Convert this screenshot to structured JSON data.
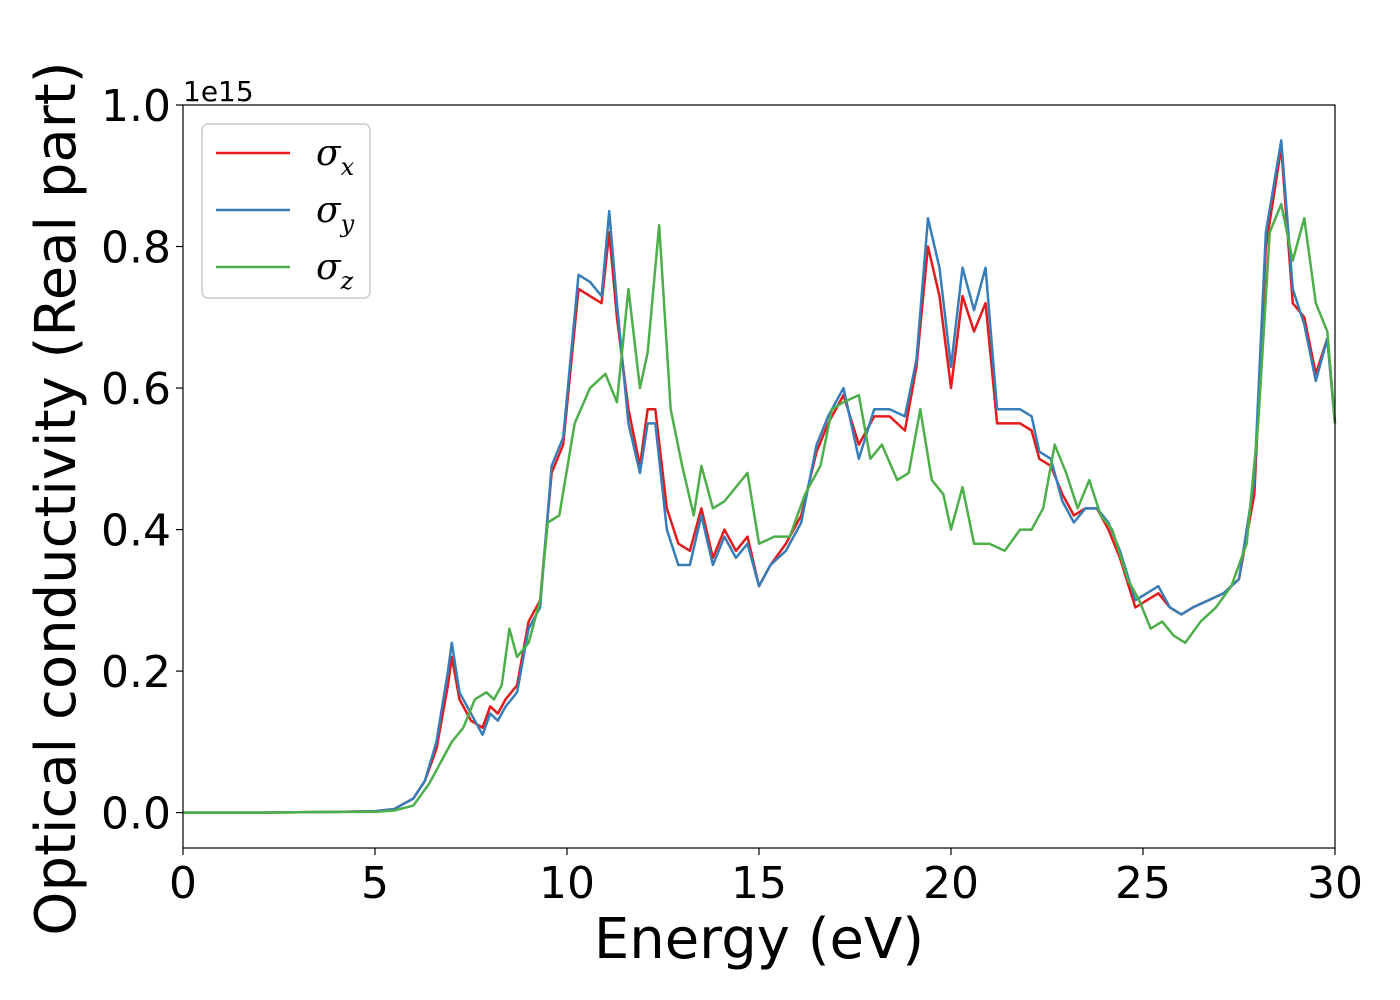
{
  "chart_data": {
    "type": "line",
    "title": "",
    "xlabel": "Energy (eV)",
    "ylabel": "Optical conductivity (Real part)",
    "y_offset_text": "1e15",
    "xlim": [
      0,
      30
    ],
    "ylim": [
      -0.05,
      1.0
    ],
    "xticks": [
      0,
      5,
      10,
      15,
      20,
      25,
      30
    ],
    "xtick_labels": [
      "0",
      "5",
      "10",
      "15",
      "20",
      "25",
      "30"
    ],
    "yticks": [
      0.0,
      0.2,
      0.4,
      0.6,
      0.8,
      1.0
    ],
    "ytick_labels": [
      "0.0",
      "0.2",
      "0.4",
      "0.6",
      "0.8",
      "1.0"
    ],
    "grid": false,
    "legend_position": "top-left",
    "colors": {
      "sigma_x": "#e41a1c",
      "sigma_y": "#377eb8",
      "sigma_z": "#4daf4a",
      "axes": "#000000",
      "legend_border": "#cccccc"
    },
    "series": [
      {
        "name": "σx",
        "symbol": "σ",
        "subscript": "x",
        "color": "#e41a1c",
        "x": [
          0,
          2,
          4,
          5,
          5.5,
          6,
          6.3,
          6.6,
          6.9,
          7.0,
          7.2,
          7.5,
          7.8,
          8.0,
          8.2,
          8.4,
          8.7,
          9.0,
          9.3,
          9.6,
          9.9,
          10.3,
          10.6,
          10.9,
          11.1,
          11.3,
          11.6,
          11.9,
          12.1,
          12.3,
          12.6,
          12.9,
          13.2,
          13.5,
          13.8,
          14.1,
          14.4,
          14.7,
          15.0,
          15.3,
          15.7,
          16.1,
          16.5,
          16.8,
          17.2,
          17.6,
          18.0,
          18.4,
          18.8,
          19.1,
          19.4,
          19.7,
          20.0,
          20.3,
          20.6,
          20.9,
          21.2,
          21.5,
          21.8,
          22.1,
          22.3,
          22.6,
          22.9,
          23.2,
          23.5,
          23.8,
          24.1,
          24.4,
          24.8,
          25.1,
          25.4,
          25.7,
          26.0,
          26.3,
          26.7,
          27.1,
          27.5,
          27.9,
          28.2,
          28.6,
          28.9,
          29.2,
          29.5,
          29.8,
          30.0
        ],
        "values": [
          0,
          0,
          0.001,
          0.002,
          0.005,
          0.02,
          0.045,
          0.09,
          0.18,
          0.22,
          0.16,
          0.13,
          0.12,
          0.15,
          0.14,
          0.16,
          0.18,
          0.27,
          0.3,
          0.48,
          0.52,
          0.74,
          0.73,
          0.72,
          0.82,
          0.7,
          0.57,
          0.49,
          0.57,
          0.57,
          0.43,
          0.38,
          0.37,
          0.43,
          0.36,
          0.4,
          0.37,
          0.39,
          0.32,
          0.35,
          0.38,
          0.42,
          0.51,
          0.55,
          0.59,
          0.52,
          0.56,
          0.56,
          0.54,
          0.63,
          0.8,
          0.73,
          0.6,
          0.73,
          0.68,
          0.72,
          0.55,
          0.55,
          0.55,
          0.54,
          0.5,
          0.49,
          0.45,
          0.42,
          0.43,
          0.43,
          0.4,
          0.36,
          0.29,
          0.3,
          0.31,
          0.29,
          0.28,
          0.29,
          0.3,
          0.31,
          0.33,
          0.45,
          0.8,
          0.94,
          0.72,
          0.7,
          0.62,
          0.67,
          0.55
        ]
      },
      {
        "name": "σy",
        "symbol": "σ",
        "subscript": "y",
        "color": "#377eb8",
        "x": [
          0,
          2,
          4,
          5,
          5.5,
          6,
          6.3,
          6.6,
          6.9,
          7.0,
          7.2,
          7.5,
          7.8,
          8.0,
          8.2,
          8.4,
          8.7,
          9.0,
          9.3,
          9.6,
          9.9,
          10.3,
          10.6,
          10.9,
          11.1,
          11.3,
          11.6,
          11.9,
          12.1,
          12.3,
          12.6,
          12.9,
          13.2,
          13.5,
          13.8,
          14.1,
          14.4,
          14.7,
          15.0,
          15.3,
          15.7,
          16.1,
          16.5,
          16.8,
          17.2,
          17.6,
          18.0,
          18.4,
          18.8,
          19.1,
          19.4,
          19.7,
          20.0,
          20.3,
          20.6,
          20.9,
          21.2,
          21.5,
          21.8,
          22.1,
          22.3,
          22.6,
          22.9,
          23.2,
          23.5,
          23.8,
          24.1,
          24.4,
          24.8,
          25.1,
          25.4,
          25.7,
          26.0,
          26.3,
          26.7,
          27.1,
          27.5,
          27.9,
          28.2,
          28.6,
          28.9,
          29.2,
          29.5,
          29.8,
          30.0
        ],
        "values": [
          0,
          0,
          0.001,
          0.002,
          0.005,
          0.02,
          0.045,
          0.1,
          0.2,
          0.24,
          0.17,
          0.14,
          0.11,
          0.14,
          0.13,
          0.15,
          0.17,
          0.26,
          0.29,
          0.49,
          0.53,
          0.76,
          0.75,
          0.73,
          0.85,
          0.72,
          0.55,
          0.48,
          0.55,
          0.55,
          0.4,
          0.35,
          0.35,
          0.42,
          0.35,
          0.39,
          0.36,
          0.38,
          0.32,
          0.35,
          0.37,
          0.41,
          0.52,
          0.56,
          0.6,
          0.5,
          0.57,
          0.57,
          0.56,
          0.64,
          0.84,
          0.77,
          0.63,
          0.77,
          0.71,
          0.77,
          0.57,
          0.57,
          0.57,
          0.56,
          0.51,
          0.5,
          0.44,
          0.41,
          0.43,
          0.43,
          0.41,
          0.37,
          0.3,
          0.31,
          0.32,
          0.29,
          0.28,
          0.29,
          0.3,
          0.31,
          0.33,
          0.47,
          0.82,
          0.95,
          0.74,
          0.69,
          0.61,
          0.67,
          0.55
        ]
      },
      {
        "name": "σz",
        "symbol": "σ",
        "subscript": "z",
        "color": "#4daf4a",
        "x": [
          0,
          2,
          4,
          5,
          5.5,
          6,
          6.4,
          6.8,
          7.0,
          7.3,
          7.6,
          7.9,
          8.1,
          8.3,
          8.5,
          8.7,
          9.0,
          9.3,
          9.5,
          9.8,
          10.2,
          10.6,
          11.0,
          11.3,
          11.6,
          11.9,
          12.1,
          12.4,
          12.7,
          13.0,
          13.3,
          13.5,
          13.8,
          14.1,
          14.4,
          14.7,
          15.0,
          15.4,
          15.8,
          16.2,
          16.6,
          16.9,
          17.2,
          17.6,
          17.9,
          18.2,
          18.6,
          18.9,
          19.2,
          19.5,
          19.8,
          20.0,
          20.3,
          20.6,
          21.0,
          21.4,
          21.8,
          22.1,
          22.4,
          22.7,
          23.0,
          23.3,
          23.6,
          23.9,
          24.2,
          24.6,
          24.9,
          25.2,
          25.5,
          25.8,
          26.1,
          26.5,
          26.9,
          27.3,
          27.7,
          28.0,
          28.3,
          28.6,
          28.9,
          29.2,
          29.5,
          29.8,
          30.0
        ],
        "values": [
          0,
          0,
          0.001,
          0.001,
          0.003,
          0.01,
          0.04,
          0.08,
          0.1,
          0.12,
          0.16,
          0.17,
          0.16,
          0.18,
          0.26,
          0.22,
          0.24,
          0.3,
          0.41,
          0.42,
          0.55,
          0.6,
          0.62,
          0.58,
          0.74,
          0.6,
          0.65,
          0.83,
          0.57,
          0.49,
          0.42,
          0.49,
          0.43,
          0.44,
          0.46,
          0.48,
          0.38,
          0.39,
          0.39,
          0.45,
          0.49,
          0.57,
          0.58,
          0.59,
          0.5,
          0.52,
          0.47,
          0.48,
          0.57,
          0.47,
          0.45,
          0.4,
          0.46,
          0.38,
          0.38,
          0.37,
          0.4,
          0.4,
          0.43,
          0.52,
          0.48,
          0.43,
          0.47,
          0.42,
          0.4,
          0.33,
          0.3,
          0.26,
          0.27,
          0.25,
          0.24,
          0.27,
          0.29,
          0.32,
          0.38,
          0.55,
          0.82,
          0.86,
          0.78,
          0.84,
          0.72,
          0.68,
          0.55
        ]
      }
    ]
  }
}
